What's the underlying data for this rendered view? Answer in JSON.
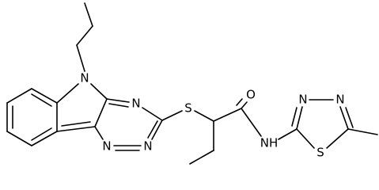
{
  "atoms": [
    "N",
    "N",
    "N",
    "N",
    "S",
    "O",
    "NH",
    "N",
    "N",
    "S"
  ]
}
